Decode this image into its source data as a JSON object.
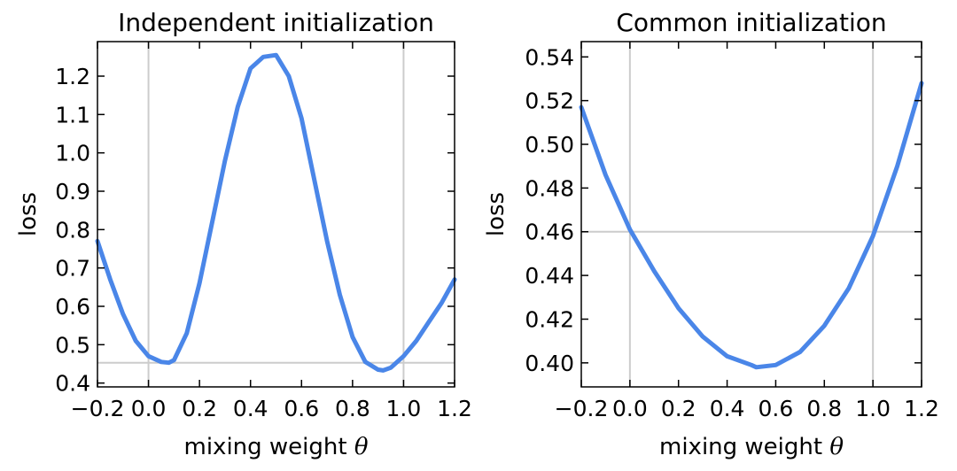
{
  "chart_data": [
    {
      "type": "line",
      "title": "Independent initialization",
      "xlabel": "mixing weight",
      "xlabel_symbol": "θ",
      "ylabel": "loss",
      "xlim": [
        -0.2,
        1.2
      ],
      "ylim": [
        0.39,
        1.29
      ],
      "xticks": [
        "−0.2",
        "0.0",
        "0.2",
        "0.4",
        "0.6",
        "0.8",
        "1.0",
        "1.2"
      ],
      "yticks": [
        "0.4",
        "0.5",
        "0.6",
        "0.7",
        "0.8",
        "0.9",
        "1.0",
        "1.1",
        "1.2"
      ],
      "ref_vlines": [
        0.0,
        1.0
      ],
      "ref_hline": 0.453,
      "series": [
        {
          "name": "loss",
          "color": "#4a86e8",
          "x": [
            -0.2,
            -0.15,
            -0.1,
            -0.05,
            0.0,
            0.05,
            0.08,
            0.1,
            0.15,
            0.2,
            0.25,
            0.3,
            0.35,
            0.4,
            0.45,
            0.5,
            0.55,
            0.6,
            0.65,
            0.7,
            0.75,
            0.8,
            0.85,
            0.9,
            0.92,
            0.95,
            1.0,
            1.05,
            1.1,
            1.15,
            1.2
          ],
          "y": [
            0.77,
            0.67,
            0.58,
            0.51,
            0.47,
            0.455,
            0.453,
            0.46,
            0.53,
            0.66,
            0.82,
            0.98,
            1.12,
            1.22,
            1.25,
            1.255,
            1.2,
            1.09,
            0.93,
            0.77,
            0.63,
            0.52,
            0.455,
            0.435,
            0.433,
            0.44,
            0.47,
            0.51,
            0.56,
            0.61,
            0.67
          ]
        }
      ]
    },
    {
      "type": "line",
      "title": "Common initialization",
      "xlabel": "mixing weight",
      "xlabel_symbol": "θ",
      "ylabel": "loss",
      "xlim": [
        -0.2,
        1.2
      ],
      "ylim": [
        0.389,
        0.547
      ],
      "xticks": [
        "−0.2",
        "0.0",
        "0.2",
        "0.4",
        "0.6",
        "0.8",
        "1.0",
        "1.2"
      ],
      "yticks": [
        "0.40",
        "0.42",
        "0.44",
        "0.46",
        "0.48",
        "0.50",
        "0.52",
        "0.54"
      ],
      "ref_vlines": [
        0.0,
        1.0
      ],
      "ref_hline": 0.46,
      "series": [
        {
          "name": "loss",
          "color": "#4a86e8",
          "x": [
            -0.2,
            -0.1,
            0.0,
            0.1,
            0.2,
            0.3,
            0.4,
            0.5,
            0.52,
            0.6,
            0.7,
            0.8,
            0.9,
            1.0,
            1.1,
            1.2
          ],
          "y": [
            0.517,
            0.486,
            0.461,
            0.442,
            0.425,
            0.412,
            0.403,
            0.399,
            0.398,
            0.399,
            0.405,
            0.417,
            0.434,
            0.458,
            0.49,
            0.528
          ]
        }
      ]
    }
  ]
}
